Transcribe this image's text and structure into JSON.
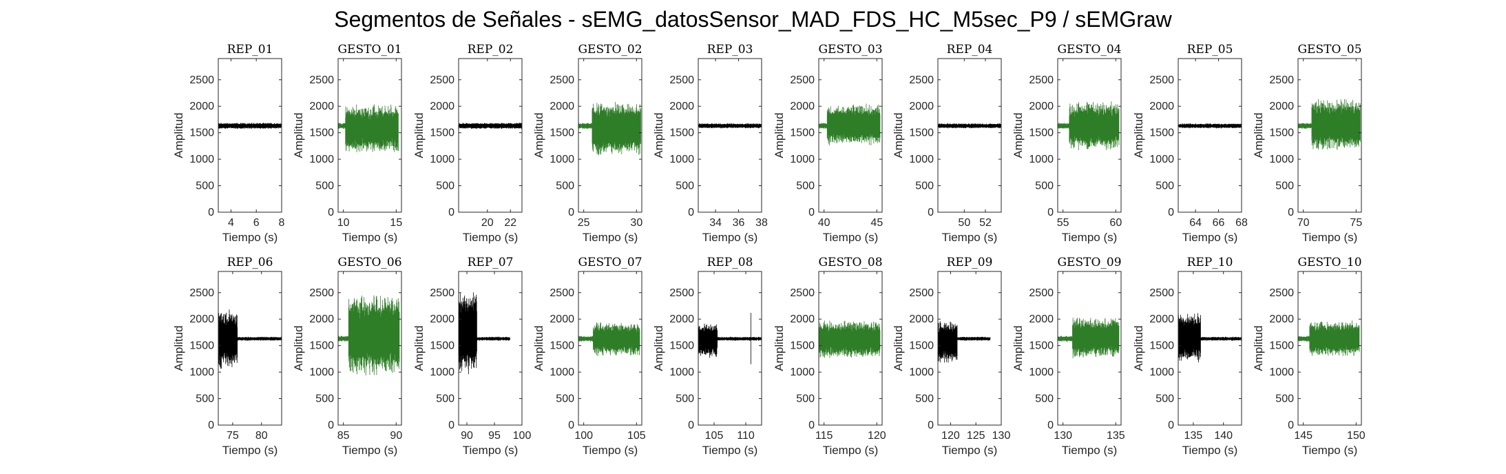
{
  "figure": {
    "title": "Segmentos de Señales - sEMG_datosSensor_MAD_FDS_HC_M5sec_P9 / sEMGraw"
  },
  "colors": {
    "rep": "#000000",
    "gesto": "#2e7d27",
    "axis": "#262626"
  },
  "chart_data": [
    {
      "type": "line",
      "title": "REP_01",
      "xlabel": "Tiempo (s)",
      "ylabel": "Amplitud",
      "ylim": [
        0,
        2900
      ],
      "xlim": [
        3,
        8
      ],
      "xticks": [
        4,
        6,
        8
      ],
      "yticks": [
        0,
        500,
        1000,
        1500,
        2000,
        2500
      ],
      "series": [
        {
          "kind": "rep",
          "baseline": 1630,
          "bursts": [
            {
              "x0": 3,
              "x1": 8,
              "lo": 1570,
              "hi": 1690
            }
          ]
        }
      ]
    },
    {
      "type": "line",
      "title": "GESTO_01",
      "xlabel": "Tiempo (s)",
      "ylabel": "Amplitud",
      "ylim": [
        0,
        2900
      ],
      "xlim": [
        9.5,
        15.5
      ],
      "xticks": [
        10,
        15
      ],
      "yticks": [
        0,
        500,
        1000,
        1500,
        2000,
        2500
      ],
      "series": [
        {
          "kind": "gesto",
          "baseline": 1630,
          "bursts": [
            {
              "x0": 9.5,
              "x1": 10.2,
              "lo": 1570,
              "hi": 1690
            },
            {
              "x0": 10.2,
              "x1": 15.2,
              "lo": 1100,
              "hi": 2050
            }
          ]
        }
      ]
    },
    {
      "type": "line",
      "title": "REP_02",
      "xlabel": "Tiempo (s)",
      "ylabel": "Amplitud",
      "ylim": [
        0,
        2900
      ],
      "xlim": [
        17.5,
        23
      ],
      "xticks": [
        20,
        22
      ],
      "yticks": [
        0,
        500,
        1000,
        1500,
        2000,
        2500
      ],
      "series": [
        {
          "kind": "rep",
          "baseline": 1630,
          "bursts": [
            {
              "x0": 17.5,
              "x1": 23,
              "lo": 1570,
              "hi": 1690
            }
          ]
        }
      ]
    },
    {
      "type": "line",
      "title": "GESTO_02",
      "xlabel": "Tiempo (s)",
      "ylabel": "Amplitud",
      "ylim": [
        0,
        2900
      ],
      "xlim": [
        24.5,
        30.5
      ],
      "xticks": [
        25,
        30
      ],
      "yticks": [
        0,
        500,
        1000,
        1500,
        2000,
        2500
      ],
      "series": [
        {
          "kind": "gesto",
          "baseline": 1630,
          "bursts": [
            {
              "x0": 24.5,
              "x1": 25.8,
              "lo": 1570,
              "hi": 1690
            },
            {
              "x0": 25.8,
              "x1": 30.4,
              "lo": 1050,
              "hi": 2100
            }
          ]
        }
      ]
    },
    {
      "type": "line",
      "title": "REP_03",
      "xlabel": "Tiempo (s)",
      "ylabel": "Amplitud",
      "ylim": [
        0,
        2900
      ],
      "xlim": [
        32.5,
        38
      ],
      "xticks": [
        34,
        36,
        38
      ],
      "yticks": [
        0,
        500,
        1000,
        1500,
        2000,
        2500
      ],
      "series": [
        {
          "kind": "rep",
          "baseline": 1630,
          "bursts": [
            {
              "x0": 32.5,
              "x1": 38,
              "lo": 1580,
              "hi": 1680
            }
          ]
        }
      ]
    },
    {
      "type": "line",
      "title": "GESTO_03",
      "xlabel": "Tiempo (s)",
      "ylabel": "Amplitud",
      "ylim": [
        0,
        2900
      ],
      "xlim": [
        39.5,
        45.5
      ],
      "xticks": [
        40,
        45
      ],
      "yticks": [
        0,
        500,
        1000,
        1500,
        2000,
        2500
      ],
      "series": [
        {
          "kind": "gesto",
          "baseline": 1630,
          "bursts": [
            {
              "x0": 39.5,
              "x1": 40.3,
              "lo": 1570,
              "hi": 1690
            },
            {
              "x0": 40.3,
              "x1": 45.3,
              "lo": 1250,
              "hi": 2050
            }
          ]
        }
      ]
    },
    {
      "type": "line",
      "title": "REP_04",
      "xlabel": "Tiempo (s)",
      "ylabel": "Amplitud",
      "ylim": [
        0,
        2900
      ],
      "xlim": [
        47.5,
        53.5
      ],
      "xticks": [
        50,
        52
      ],
      "yticks": [
        0,
        500,
        1000,
        1500,
        2000,
        2500
      ],
      "series": [
        {
          "kind": "rep",
          "baseline": 1630,
          "bursts": [
            {
              "x0": 47.5,
              "x1": 53.5,
              "lo": 1580,
              "hi": 1680
            }
          ]
        }
      ]
    },
    {
      "type": "line",
      "title": "GESTO_04",
      "xlabel": "Tiempo (s)",
      "ylabel": "Amplitud",
      "ylim": [
        0,
        2900
      ],
      "xlim": [
        54.5,
        60.5
      ],
      "xticks": [
        55,
        60
      ],
      "yticks": [
        0,
        500,
        1000,
        1500,
        2000,
        2500
      ],
      "series": [
        {
          "kind": "gesto",
          "baseline": 1630,
          "bursts": [
            {
              "x0": 54.5,
              "x1": 55.6,
              "lo": 1570,
              "hi": 1690
            },
            {
              "x0": 55.6,
              "x1": 60.3,
              "lo": 1150,
              "hi": 2100
            }
          ]
        }
      ]
    },
    {
      "type": "line",
      "title": "REP_05",
      "xlabel": "Tiempo (s)",
      "ylabel": "Amplitud",
      "ylim": [
        0,
        2900
      ],
      "xlim": [
        62.5,
        68
      ],
      "xticks": [
        64,
        66,
        68
      ],
      "yticks": [
        0,
        500,
        1000,
        1500,
        2000,
        2500
      ],
      "series": [
        {
          "kind": "rep",
          "baseline": 1630,
          "bursts": [
            {
              "x0": 62.5,
              "x1": 68,
              "lo": 1580,
              "hi": 1680
            }
          ]
        }
      ]
    },
    {
      "type": "line",
      "title": "GESTO_05",
      "xlabel": "Tiempo (s)",
      "ylabel": "Amplitud",
      "ylim": [
        0,
        2900
      ],
      "xlim": [
        69.5,
        75.5
      ],
      "xticks": [
        70,
        75
      ],
      "yticks": [
        0,
        500,
        1000,
        1500,
        2000,
        2500
      ],
      "series": [
        {
          "kind": "gesto",
          "baseline": 1630,
          "bursts": [
            {
              "x0": 69.5,
              "x1": 70.8,
              "lo": 1570,
              "hi": 1690
            },
            {
              "x0": 70.8,
              "x1": 75.4,
              "lo": 1150,
              "hi": 2150
            }
          ]
        }
      ]
    },
    {
      "type": "line",
      "title": "REP_06",
      "xlabel": "Tiempo (s)",
      "ylabel": "Amplitud",
      "ylim": [
        0,
        2900
      ],
      "xlim": [
        72.5,
        83.5
      ],
      "xticks": [
        75,
        80
      ],
      "yticks": [
        0,
        500,
        1000,
        1500,
        2000,
        2500
      ],
      "series": [
        {
          "kind": "rep",
          "baseline": 1630,
          "bursts": [
            {
              "x0": 72.5,
              "x1": 75.8,
              "lo": 1050,
              "hi": 2200
            },
            {
              "x0": 75.8,
              "x1": 83.5,
              "lo": 1590,
              "hi": 1670
            }
          ]
        }
      ]
    },
    {
      "type": "line",
      "title": "GESTO_06",
      "xlabel": "Tiempo (s)",
      "ylabel": "Amplitud",
      "ylim": [
        0,
        2900
      ],
      "xlim": [
        84.5,
        90.5
      ],
      "xticks": [
        85,
        90
      ],
      "yticks": [
        0,
        500,
        1000,
        1500,
        2000,
        2500
      ],
      "series": [
        {
          "kind": "gesto",
          "baseline": 1630,
          "bursts": [
            {
              "x0": 84.5,
              "x1": 85.5,
              "lo": 1570,
              "hi": 1690
            },
            {
              "x0": 85.5,
              "x1": 90.3,
              "lo": 900,
              "hi": 2500
            }
          ]
        }
      ]
    },
    {
      "type": "line",
      "title": "REP_07",
      "xlabel": "Tiempo (s)",
      "ylabel": "Amplitud",
      "ylim": [
        0,
        2900
      ],
      "xlim": [
        88.5,
        100
      ],
      "xticks": [
        90,
        95,
        100
      ],
      "yticks": [
        0,
        500,
        1000,
        1500,
        2000,
        2500
      ],
      "series": [
        {
          "kind": "rep",
          "baseline": 1630,
          "bursts": [
            {
              "x0": 88.5,
              "x1": 91.8,
              "lo": 900,
              "hi": 2600
            },
            {
              "x0": 91.8,
              "x1": 97.8,
              "lo": 1590,
              "hi": 1670
            }
          ]
        }
      ]
    },
    {
      "type": "line",
      "title": "GESTO_07",
      "xlabel": "Tiempo (s)",
      "ylabel": "Amplitud",
      "ylim": [
        0,
        2900
      ],
      "xlim": [
        99.5,
        105.5
      ],
      "xticks": [
        100,
        105
      ],
      "yticks": [
        0,
        500,
        1000,
        1500,
        2000,
        2500
      ],
      "series": [
        {
          "kind": "gesto",
          "baseline": 1630,
          "bursts": [
            {
              "x0": 99.5,
              "x1": 100.9,
              "lo": 1570,
              "hi": 1690
            },
            {
              "x0": 100.9,
              "x1": 105.3,
              "lo": 1300,
              "hi": 1950
            }
          ]
        }
      ]
    },
    {
      "type": "line",
      "title": "REP_08",
      "xlabel": "Tiempo (s)",
      "ylabel": "Amplitud",
      "ylim": [
        0,
        2900
      ],
      "xlim": [
        102.5,
        112.5
      ],
      "xticks": [
        105,
        110
      ],
      "yticks": [
        0,
        500,
        1000,
        1500,
        2000,
        2500
      ],
      "series": [
        {
          "kind": "rep",
          "baseline": 1630,
          "bursts": [
            {
              "x0": 102.5,
              "x1": 105.5,
              "lo": 1250,
              "hi": 1950
            },
            {
              "x0": 105.5,
              "x1": 112.5,
              "lo": 1590,
              "hi": 1670
            }
          ],
          "spikes": [
            {
              "x": 110.8,
              "lo": 1150,
              "hi": 2120
            }
          ]
        }
      ]
    },
    {
      "type": "line",
      "title": "GESTO_08",
      "xlabel": "Tiempo (s)",
      "ylabel": "Amplitud",
      "ylim": [
        0,
        2900
      ],
      "xlim": [
        114.5,
        120.5
      ],
      "xticks": [
        115,
        120
      ],
      "yticks": [
        0,
        500,
        1000,
        1500,
        2000,
        2500
      ],
      "series": [
        {
          "kind": "gesto",
          "baseline": 1630,
          "bursts": [
            {
              "x0": 114.5,
              "x1": 120.3,
              "lo": 1250,
              "hi": 1980
            }
          ]
        }
      ]
    },
    {
      "type": "line",
      "title": "REP_09",
      "xlabel": "Tiempo (s)",
      "ylabel": "Amplitud",
      "ylim": [
        0,
        2900
      ],
      "xlim": [
        117.5,
        130
      ],
      "xticks": [
        120,
        125,
        130
      ],
      "yticks": [
        0,
        500,
        1000,
        1500,
        2000,
        2500
      ],
      "series": [
        {
          "kind": "rep",
          "baseline": 1630,
          "bursts": [
            {
              "x0": 117.5,
              "x1": 121.3,
              "lo": 1150,
              "hi": 1980
            },
            {
              "x0": 121.3,
              "x1": 127.8,
              "lo": 1590,
              "hi": 1670
            }
          ]
        }
      ]
    },
    {
      "type": "line",
      "title": "GESTO_09",
      "xlabel": "Tiempo (s)",
      "ylabel": "Amplitud",
      "ylim": [
        0,
        2900
      ],
      "xlim": [
        129.5,
        135.5
      ],
      "xticks": [
        130,
        135
      ],
      "yticks": [
        0,
        500,
        1000,
        1500,
        2000,
        2500
      ],
      "series": [
        {
          "kind": "gesto",
          "baseline": 1630,
          "bursts": [
            {
              "x0": 129.5,
              "x1": 130.9,
              "lo": 1570,
              "hi": 1690
            },
            {
              "x0": 130.9,
              "x1": 135.3,
              "lo": 1250,
              "hi": 2050
            }
          ]
        }
      ]
    },
    {
      "type": "line",
      "title": "REP_10",
      "xlabel": "Tiempo (s)",
      "ylabel": "Amplitud",
      "ylim": [
        0,
        2900
      ],
      "xlim": [
        132.5,
        143
      ],
      "xticks": [
        135,
        140
      ],
      "yticks": [
        0,
        500,
        1000,
        1500,
        2000,
        2500
      ],
      "series": [
        {
          "kind": "rep",
          "baseline": 1630,
          "bursts": [
            {
              "x0": 132.5,
              "x1": 136.2,
              "lo": 1150,
              "hi": 2150
            },
            {
              "x0": 136.2,
              "x1": 143,
              "lo": 1590,
              "hi": 1670
            }
          ]
        }
      ]
    },
    {
      "type": "line",
      "title": "GESTO_10",
      "xlabel": "Tiempo (s)",
      "ylabel": "Amplitud",
      "ylim": [
        0,
        2900
      ],
      "xlim": [
        144.5,
        150.5
      ],
      "xticks": [
        145,
        150
      ],
      "yticks": [
        0,
        500,
        1000,
        1500,
        2000,
        2500
      ],
      "series": [
        {
          "kind": "gesto",
          "baseline": 1630,
          "bursts": [
            {
              "x0": 144.5,
              "x1": 145.6,
              "lo": 1570,
              "hi": 1690
            },
            {
              "x0": 145.6,
              "x1": 150.3,
              "lo": 1280,
              "hi": 1980
            }
          ]
        }
      ]
    }
  ]
}
